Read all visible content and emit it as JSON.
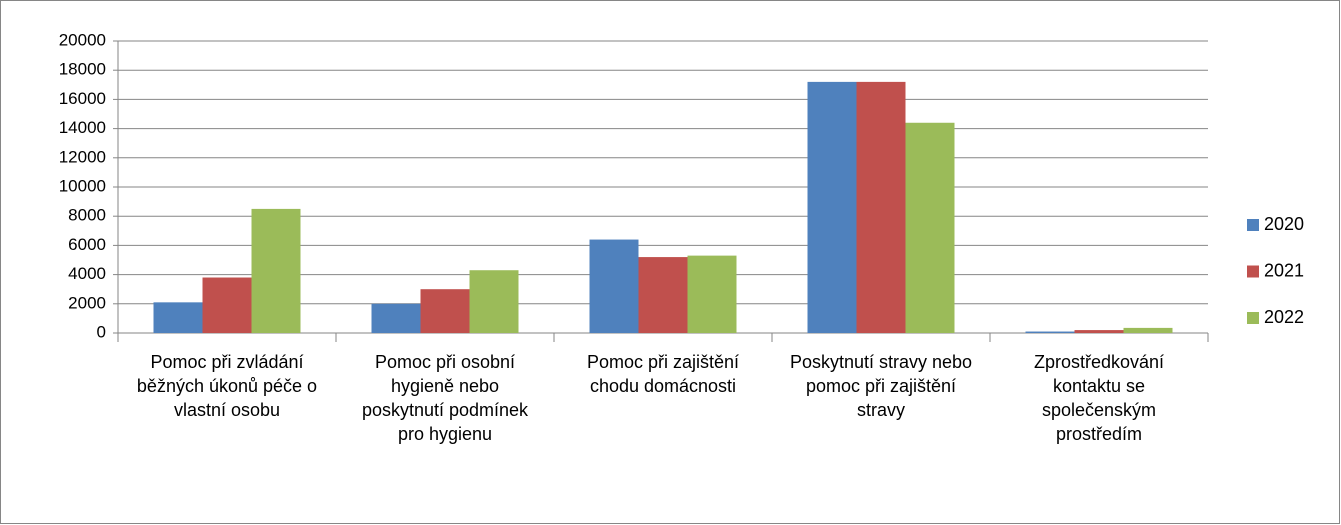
{
  "chart_data": {
    "type": "bar",
    "categories": [
      "Pomoc při zvládání běžných úkonů péče o vlastní osobu",
      "Pomoc při osobní hygieně nebo poskytnutí podmínek pro hygienu",
      "Pomoc při zajištění chodu domácnosti",
      "Poskytnutí stravy nebo pomoc při zajištění stravy",
      "Zprostředkování kontaktu se společenským prostředím"
    ],
    "series": [
      {
        "name": "2020",
        "color": "#4f81bd",
        "values": [
          2100,
          2000,
          6400,
          17200,
          100
        ]
      },
      {
        "name": "2021",
        "color": "#c0504d",
        "values": [
          3800,
          3000,
          5200,
          17200,
          200
        ]
      },
      {
        "name": "2022",
        "color": "#9bbb59",
        "values": [
          8500,
          4300,
          5300,
          14400,
          350
        ]
      }
    ],
    "ylim": [
      0,
      20000
    ],
    "yticks": [
      0,
      2000,
      4000,
      6000,
      8000,
      10000,
      12000,
      14000,
      16000,
      18000,
      20000
    ],
    "grid": true,
    "legend": "right"
  }
}
